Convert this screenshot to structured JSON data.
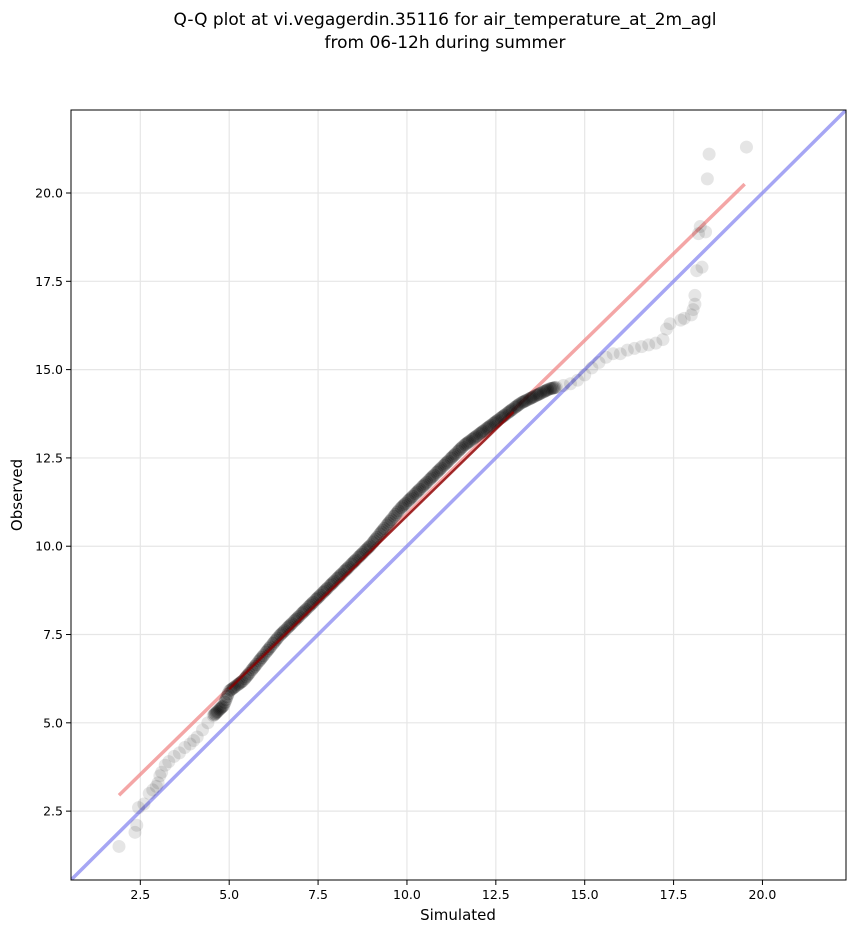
{
  "chart_data": {
    "type": "scatter",
    "title": "Q-Q plot at vi.vegagerdin.35116 for air_temperature_at_2m_agl",
    "subtitle": "from 06-12h during summer",
    "xlabel": "Simulated",
    "ylabel": "Observed",
    "xlim": [
      0.55,
      22.35
    ],
    "ylim": [
      0.55,
      22.35
    ],
    "x_ticks": [
      2.5,
      5.0,
      7.5,
      10.0,
      12.5,
      15.0,
      17.5,
      20.0
    ],
    "x_tick_labels": [
      "2.5",
      "5.0",
      "7.5",
      "10.0",
      "12.5",
      "15.0",
      "17.5",
      "20.0"
    ],
    "y_ticks": [
      2.5,
      5.0,
      7.5,
      10.0,
      12.5,
      15.0,
      17.5,
      20.0
    ],
    "y_tick_labels": [
      "2.5",
      "5.0",
      "7.5",
      "10.0",
      "12.5",
      "15.0",
      "17.5",
      "20.0"
    ],
    "grid": true,
    "colors": {
      "points": "#000000",
      "fit_line": "#f08080",
      "fit_segment": "#8b0000",
      "identity_line": "#8080f0",
      "grid": "#e6e6e6"
    },
    "identity_line": {
      "x": [
        0.55,
        22.35
      ],
      "y": [
        0.55,
        22.35
      ]
    },
    "fit_line": {
      "x": [
        1.9,
        19.5
      ],
      "y": [
        2.95,
        20.25
      ]
    },
    "fit_segment": {
      "x": [
        5.0,
        13.0
      ],
      "y": [
        5.95,
        13.8
      ]
    },
    "points": {
      "x": [
        1.9,
        2.35,
        2.4,
        2.45,
        2.6,
        2.75,
        2.85,
        2.95,
        3.0,
        3.05,
        3.1,
        3.2,
        3.3,
        3.45,
        3.6,
        3.75,
        3.9,
        4.0,
        4.1,
        4.25,
        4.4,
        4.55,
        4.7,
        4.85,
        5.0,
        5.2,
        5.4,
        5.6,
        5.8,
        6.0,
        6.2,
        6.4,
        6.6,
        6.8,
        7.0,
        7.2,
        7.4,
        7.6,
        7.8,
        8.0,
        8.2,
        8.4,
        8.6,
        8.8,
        9.0,
        9.2,
        9.4,
        9.6,
        9.8,
        10.0,
        10.2,
        10.4,
        10.6,
        10.8,
        11.0,
        11.2,
        11.4,
        11.6,
        11.8,
        12.0,
        12.2,
        12.4,
        12.6,
        12.8,
        13.0,
        13.2,
        13.4,
        13.6,
        13.8,
        14.0,
        14.2,
        14.4,
        14.6,
        14.8,
        15.0,
        15.2,
        15.4,
        15.6,
        15.8,
        16.0,
        16.2,
        16.4,
        16.6,
        16.8,
        17.0,
        17.2,
        17.3,
        17.4,
        17.7,
        17.8,
        18.0,
        18.05,
        18.1,
        18.1,
        18.15,
        18.2,
        18.25,
        18.3,
        18.4,
        18.45,
        18.5,
        19.55
      ],
      "y": [
        1.5,
        1.9,
        2.1,
        2.6,
        2.7,
        3.0,
        3.1,
        3.2,
        3.3,
        3.5,
        3.6,
        3.8,
        3.9,
        4.05,
        4.15,
        4.3,
        4.4,
        4.5,
        4.6,
        4.8,
        5.0,
        5.2,
        5.35,
        5.5,
        5.9,
        6.05,
        6.2,
        6.45,
        6.7,
        6.95,
        7.2,
        7.45,
        7.65,
        7.85,
        8.05,
        8.25,
        8.45,
        8.65,
        8.85,
        9.05,
        9.25,
        9.45,
        9.65,
        9.85,
        10.05,
        10.3,
        10.55,
        10.8,
        11.05,
        11.25,
        11.45,
        11.65,
        11.85,
        12.05,
        12.25,
        12.45,
        12.65,
        12.85,
        13.0,
        13.15,
        13.3,
        13.45,
        13.6,
        13.75,
        13.9,
        14.05,
        14.15,
        14.25,
        14.35,
        14.45,
        14.5,
        14.55,
        14.6,
        14.7,
        14.85,
        15.05,
        15.2,
        15.35,
        15.45,
        15.45,
        15.55,
        15.6,
        15.65,
        15.7,
        15.75,
        15.85,
        16.15,
        16.3,
        16.4,
        16.45,
        16.55,
        16.7,
        16.85,
        17.1,
        17.8,
        18.85,
        19.05,
        17.9,
        18.9,
        20.4,
        21.1,
        21.3
      ]
    }
  }
}
